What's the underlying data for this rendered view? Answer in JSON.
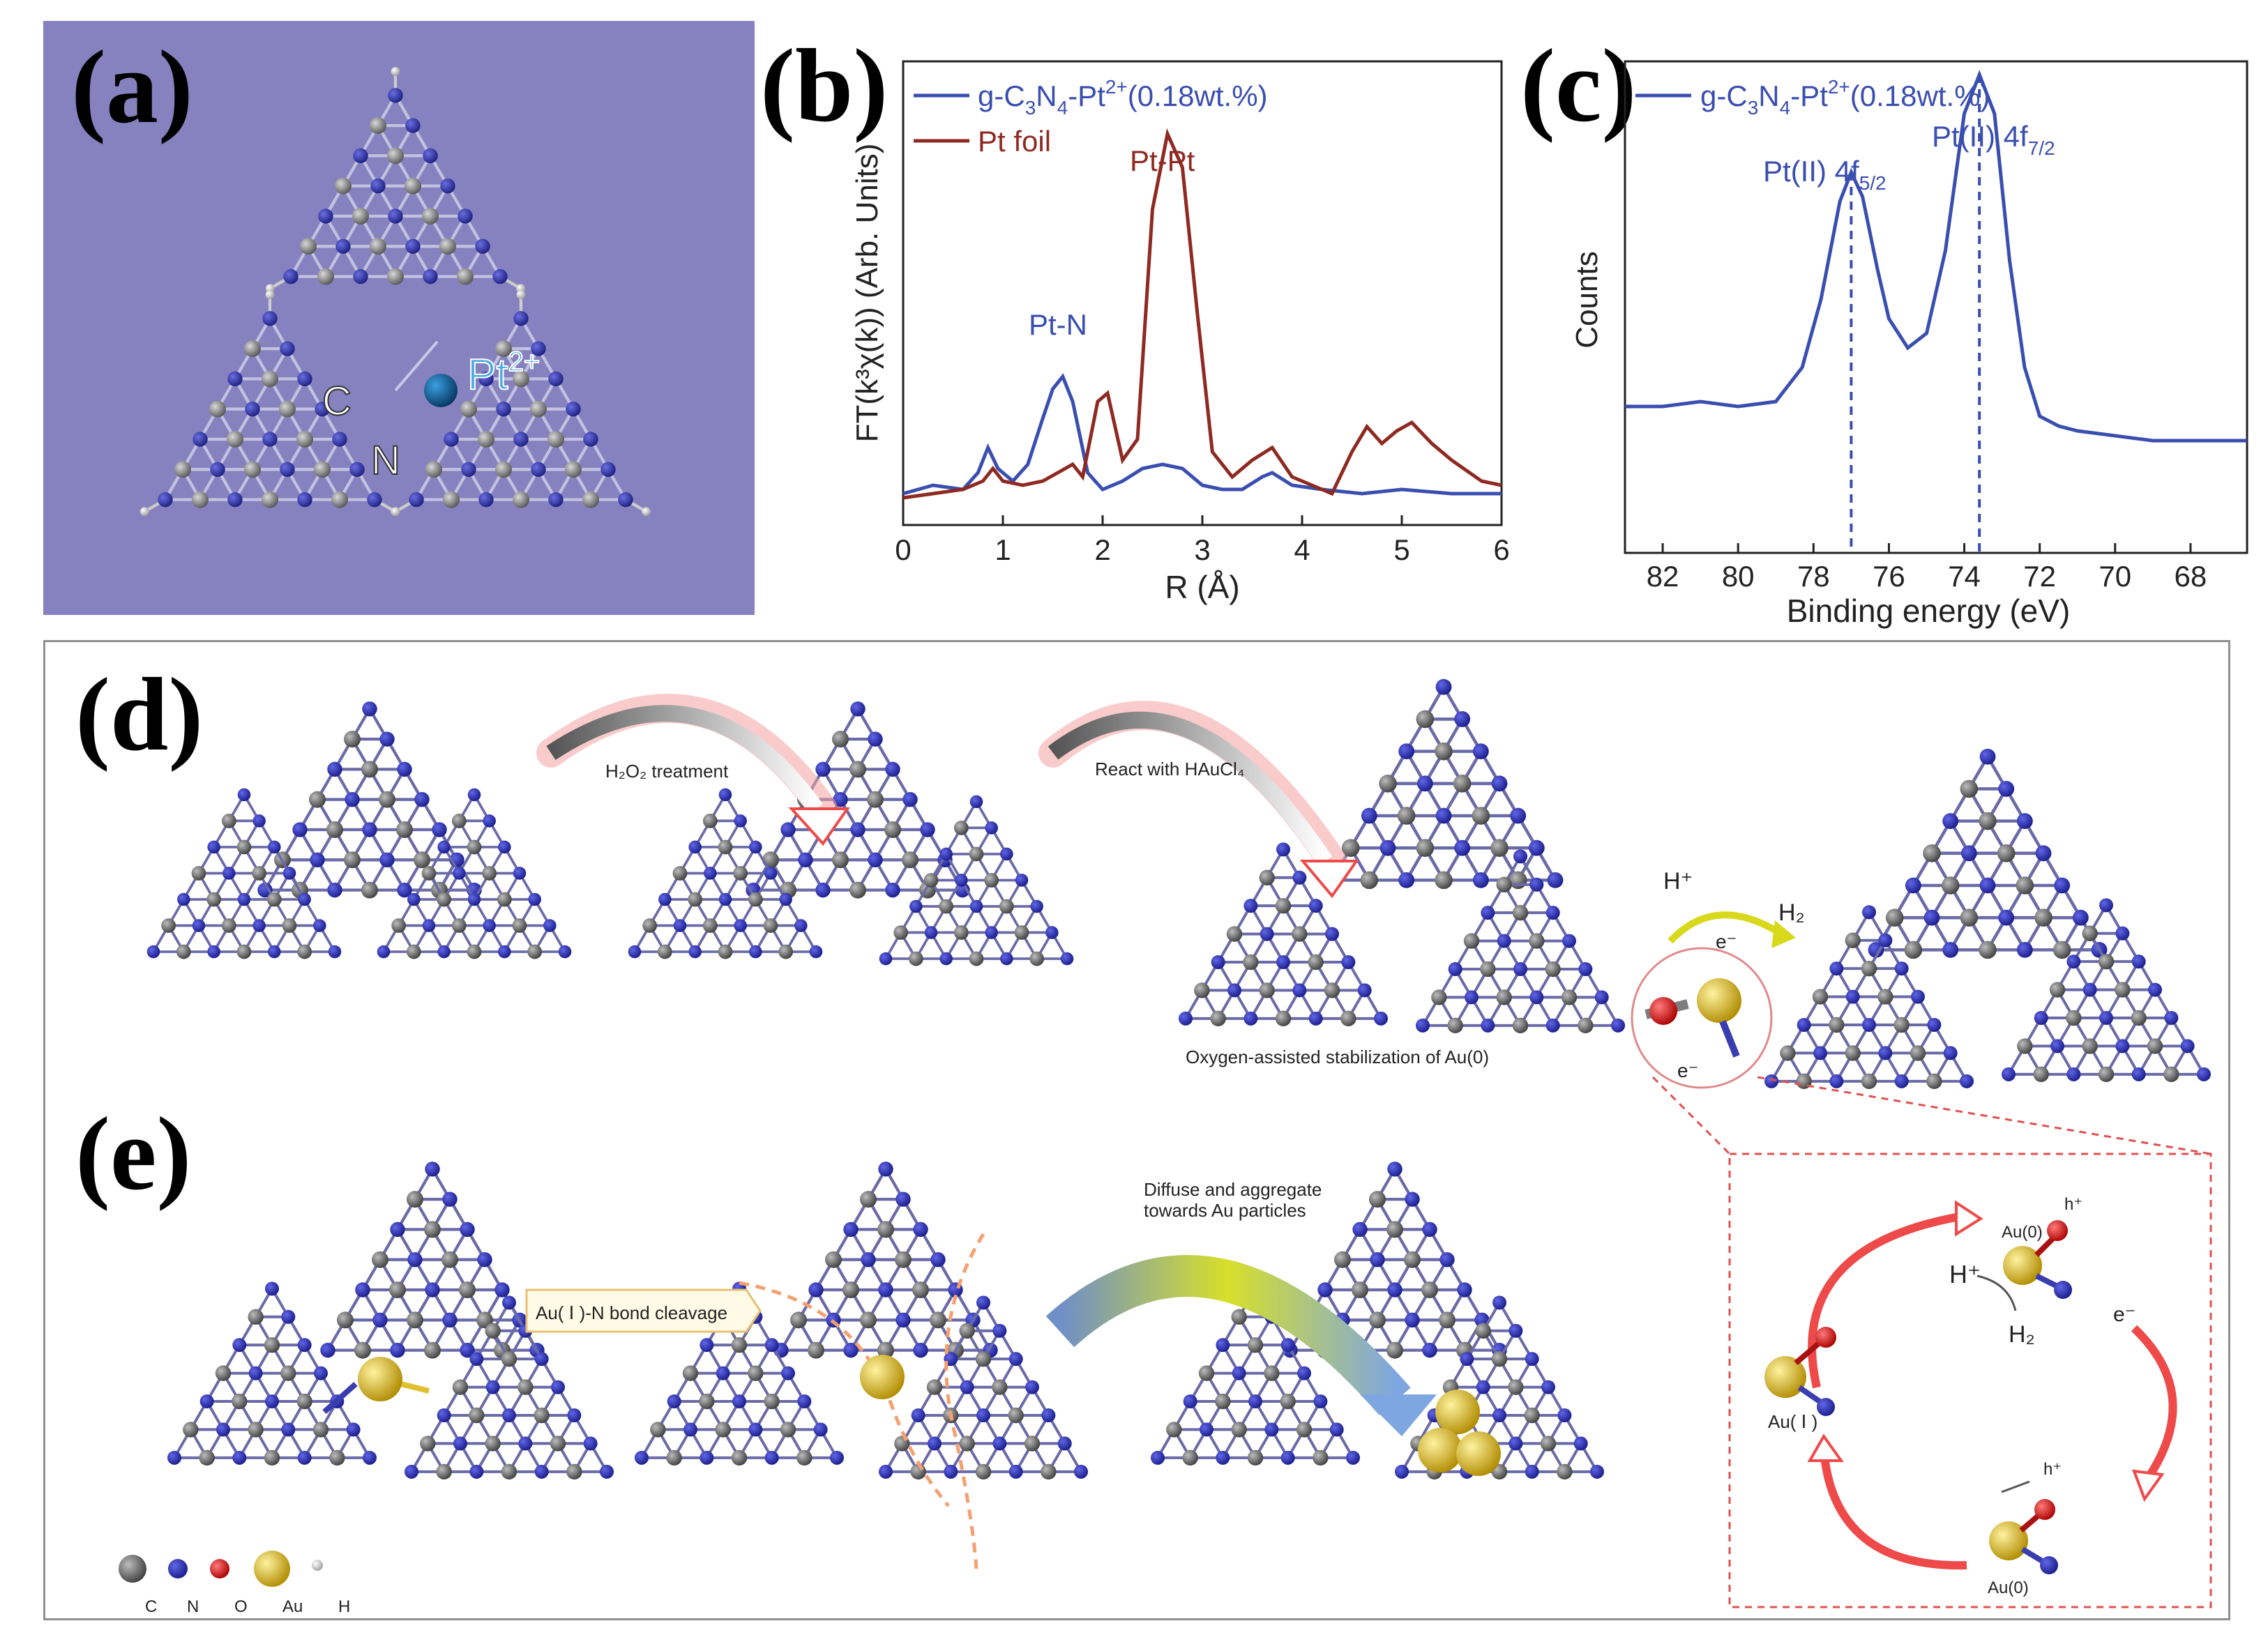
{
  "panel_labels": {
    "a": "(a)",
    "b": "(b)",
    "c": "(c)",
    "d": "(d)",
    "e": "(e)"
  },
  "colors": {
    "panel_a_background": "#8682c0",
    "nitrogen": "#2c2fa8",
    "carbon": "#7c7c7c",
    "hydrogen": "#e0e0e0",
    "platinum": "#0d5c9c",
    "oxygen": "#dd1a1a",
    "gold": "#e6c22a",
    "series_pt_n": "#3a4eb0",
    "series_pt_foil": "#8e2a22",
    "arrow_red": "#ee4a4a"
  },
  "panel_a": {
    "pt_label": "Pt",
    "pt_charge": "2+",
    "c_label": "C",
    "n_label": "N"
  },
  "panel_b": {
    "legend": [
      {
        "name_main": "g-C",
        "sub1": "3",
        "mid": "N",
        "sub2": "4",
        "tail": "-Pt",
        "sup": "2+",
        "end": "(0.18wt.%)",
        "color": "#3a4eb0"
      },
      {
        "name": "Pt foil",
        "color": "#8e2a22"
      }
    ],
    "annotations": {
      "pt_n": "Pt-N",
      "pt_pt": "Pt-Pt"
    },
    "ylabel": "FT(k³χ(k)) (Arb. Units)",
    "xlabel": "R (Å)",
    "xticks": [
      "0",
      "1",
      "2",
      "3",
      "4",
      "5",
      "6"
    ]
  },
  "panel_c": {
    "legend": {
      "name_main": "g-C",
      "sub1": "3",
      "mid": "N",
      "sub2": "4",
      "tail": "-Pt",
      "sup": "2+",
      "end": "(0.18wt.%)"
    },
    "peak1": {
      "main": "Pt(II) 4f",
      "sub": "5/2"
    },
    "peak2": {
      "main": "Pt(II) 4f",
      "sub": "7/2"
    },
    "ylabel": "Counts",
    "xlabel": "Binding energy (eV)",
    "xticks": [
      "82",
      "80",
      "78",
      "76",
      "74",
      "72",
      "70",
      "68"
    ]
  },
  "panel_d": {
    "step1": "H₂O₂ treatment",
    "step2": "React with HAuCl₄",
    "caption": "Oxygen-assisted stabilization of Au(0)",
    "h_plus": "H⁺",
    "h2": "H₂",
    "e_top": "e⁻",
    "e_bottom": "e⁻"
  },
  "panel_e": {
    "bond_cleavage": "Au( Ⅰ )-N bond  cleavage",
    "diffuse_line1": "Diffuse and aggregate",
    "diffuse_line2": "towards Au particles",
    "cycle": {
      "au0_top": "Au(0)",
      "h_top": "h⁺",
      "h_plus": "H⁺",
      "h2": "H₂",
      "e_minus": "e⁻",
      "au1": "Au( Ⅰ )",
      "au0_bottom": "Au(0)",
      "h_bottom": "h⁺"
    },
    "legend": [
      "C",
      "N",
      "O",
      "Au",
      "H"
    ]
  },
  "chart_data": [
    {
      "type": "line",
      "panel": "b",
      "xlabel": "R (Å)",
      "ylabel": "FT(k³χ(k)) (Arb. Units)",
      "xlim": [
        0,
        6
      ],
      "ylim": [
        0,
        1
      ],
      "series": [
        {
          "name": "g-C3N4-Pt2+(0.18wt.%)",
          "x": [
            0,
            0.3,
            0.6,
            0.75,
            0.85,
            0.95,
            1.1,
            1.25,
            1.4,
            1.5,
            1.6,
            1.7,
            1.85,
            2.0,
            2.2,
            2.4,
            2.6,
            2.8,
            3.0,
            3.2,
            3.4,
            3.6,
            3.7,
            3.9,
            4.2,
            4.6,
            5.0,
            5.5,
            6.0
          ],
          "y": [
            0.02,
            0.04,
            0.03,
            0.07,
            0.13,
            0.08,
            0.05,
            0.09,
            0.2,
            0.27,
            0.3,
            0.24,
            0.07,
            0.03,
            0.05,
            0.08,
            0.09,
            0.08,
            0.04,
            0.03,
            0.03,
            0.06,
            0.07,
            0.04,
            0.03,
            0.02,
            0.03,
            0.02,
            0.02
          ]
        },
        {
          "name": "Pt foil",
          "x": [
            0,
            0.3,
            0.6,
            0.8,
            0.9,
            1.0,
            1.2,
            1.4,
            1.55,
            1.7,
            1.8,
            1.95,
            2.05,
            2.2,
            2.35,
            2.5,
            2.65,
            2.8,
            2.95,
            3.1,
            3.3,
            3.5,
            3.7,
            3.9,
            4.1,
            4.3,
            4.5,
            4.65,
            4.8,
            4.95,
            5.1,
            5.3,
            5.5,
            5.8,
            6.0
          ],
          "y": [
            0.01,
            0.02,
            0.03,
            0.05,
            0.08,
            0.05,
            0.04,
            0.05,
            0.07,
            0.09,
            0.06,
            0.24,
            0.26,
            0.1,
            0.15,
            0.7,
            0.88,
            0.8,
            0.45,
            0.12,
            0.06,
            0.1,
            0.13,
            0.06,
            0.04,
            0.02,
            0.12,
            0.18,
            0.14,
            0.17,
            0.19,
            0.14,
            0.1,
            0.05,
            0.04
          ]
        }
      ]
    },
    {
      "type": "line",
      "panel": "c",
      "xlabel": "Binding energy (eV)",
      "ylabel": "Counts",
      "xlim": [
        83,
        66.5
      ],
      "ylim": [
        0,
        1
      ],
      "series": [
        {
          "name": "g-C3N4-Pt2+(0.18wt.%)",
          "x": [
            83,
            82,
            81,
            80,
            79,
            78.3,
            77.8,
            77.3,
            77.0,
            76.7,
            76.3,
            76.0,
            75.5,
            75.0,
            74.5,
            74.0,
            73.6,
            73.2,
            72.8,
            72.4,
            72.0,
            71.5,
            71.0,
            70.0,
            69.0,
            68.0,
            67.0,
            66.5
          ],
          "y": [
            0.3,
            0.3,
            0.31,
            0.3,
            0.31,
            0.38,
            0.52,
            0.72,
            0.78,
            0.73,
            0.58,
            0.48,
            0.42,
            0.45,
            0.62,
            0.9,
            0.98,
            0.9,
            0.6,
            0.38,
            0.28,
            0.26,
            0.25,
            0.24,
            0.23,
            0.23,
            0.23,
            0.23
          ]
        }
      ]
    }
  ]
}
